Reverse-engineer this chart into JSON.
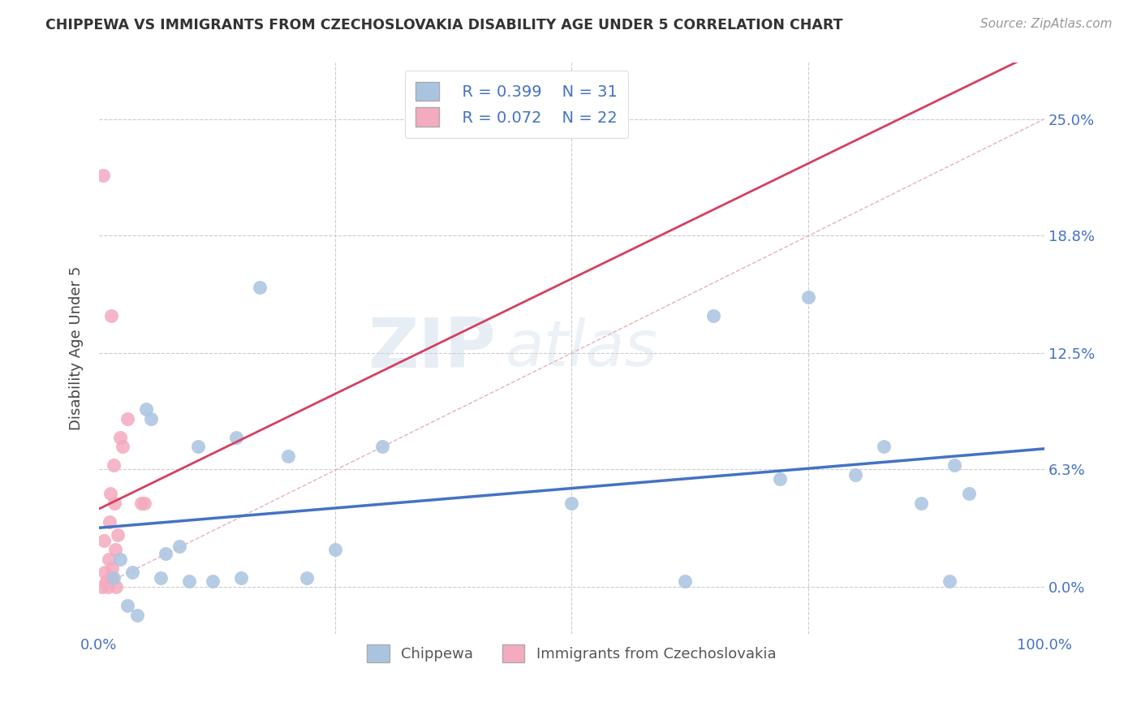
{
  "title": "CHIPPEWA VS IMMIGRANTS FROM CZECHOSLOVAKIA DISABILITY AGE UNDER 5 CORRELATION CHART",
  "source": "Source: ZipAtlas.com",
  "ylabel": "Disability Age Under 5",
  "ytick_values": [
    0.0,
    6.3,
    12.5,
    18.8,
    25.0
  ],
  "xlim": [
    0.0,
    100.0
  ],
  "ylim": [
    -2.5,
    28.0
  ],
  "legend_r1": "R = 0.399",
  "legend_n1": "N = 31",
  "legend_r2": "R = 0.072",
  "legend_n2": "N = 22",
  "chippewa_color": "#aac4e0",
  "immigrants_color": "#f4aabf",
  "trendline_blue": "#4472c4",
  "trendline_pink": "#d44060",
  "diag_color": "#e8b0c0",
  "grid_color": "#cccccc",
  "background_color": "#ffffff",
  "blue_x": [
    1.5,
    2.2,
    3.5,
    5.0,
    5.5,
    6.5,
    7.0,
    8.5,
    9.5,
    10.5,
    12.0,
    14.5,
    17.0,
    20.0,
    22.0,
    25.0,
    30.0,
    50.0,
    62.0,
    65.0,
    72.0,
    75.0,
    80.0,
    83.0,
    87.0,
    90.0,
    90.5,
    92.0,
    3.0,
    4.0,
    15.0
  ],
  "blue_y": [
    0.5,
    1.5,
    0.8,
    9.5,
    9.0,
    0.5,
    1.8,
    2.2,
    0.3,
    7.5,
    0.3,
    8.0,
    16.0,
    7.0,
    0.5,
    2.0,
    7.5,
    4.5,
    0.3,
    14.5,
    5.8,
    15.5,
    6.0,
    7.5,
    4.5,
    0.3,
    6.5,
    5.0,
    -1.0,
    -1.5,
    0.5
  ],
  "pink_x": [
    0.3,
    0.5,
    0.6,
    0.8,
    0.9,
    1.0,
    1.1,
    1.2,
    1.3,
    1.4,
    1.5,
    1.6,
    1.7,
    1.8,
    2.0,
    2.2,
    2.5,
    3.0,
    4.5,
    4.8,
    0.4,
    1.3
  ],
  "pink_y": [
    0.0,
    2.5,
    0.8,
    0.3,
    0.0,
    1.5,
    3.5,
    5.0,
    0.5,
    1.0,
    6.5,
    4.5,
    2.0,
    0.0,
    2.8,
    8.0,
    7.5,
    9.0,
    4.5,
    4.5,
    22.0,
    14.5
  ]
}
